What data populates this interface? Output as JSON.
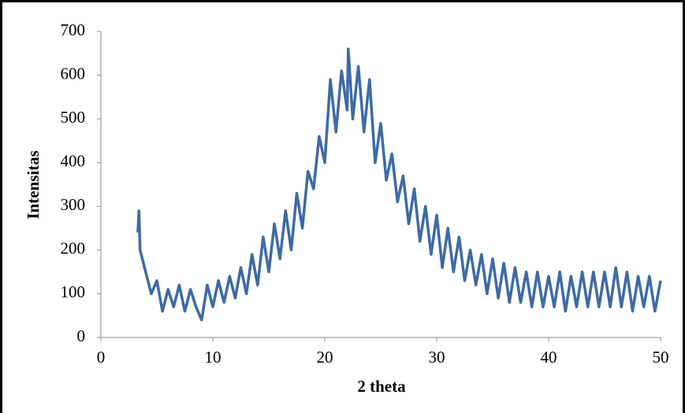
{
  "chart_data": {
    "type": "line",
    "x_label": "2 theta",
    "y_label": "Intensitas",
    "x": [
      3.3,
      3.4,
      3.5,
      4,
      4.5,
      5,
      5.5,
      6,
      6.5,
      7,
      7.5,
      8,
      8.5,
      9,
      9.5,
      10,
      10.5,
      11,
      11.5,
      12,
      12.5,
      13,
      13.5,
      14,
      14.5,
      15,
      15.5,
      16,
      16.5,
      17,
      17.5,
      18,
      18.5,
      19,
      19.5,
      20,
      20.5,
      21,
      21.5,
      22,
      22.1,
      22.5,
      23,
      23.5,
      24,
      24.5,
      25,
      25.5,
      26,
      26.5,
      27,
      27.5,
      28,
      28.5,
      29,
      29.5,
      30,
      30.5,
      31,
      31.5,
      32,
      32.5,
      33,
      33.5,
      34,
      34.5,
      35,
      35.5,
      36,
      36.5,
      37,
      37.5,
      38,
      38.5,
      39,
      39.5,
      40,
      40.5,
      41,
      41.5,
      42,
      42.5,
      43,
      43.5,
      44,
      44.5,
      45,
      45.5,
      46,
      46.5,
      47,
      47.5,
      48,
      48.5,
      49,
      49.5,
      50
    ],
    "series": [
      {
        "color": "#3d6aa5",
        "values": [
          240,
          290,
          200,
          150,
          100,
          130,
          60,
          110,
          70,
          120,
          60,
          110,
          70,
          40,
          120,
          70,
          130,
          80,
          140,
          90,
          160,
          100,
          190,
          120,
          230,
          150,
          260,
          180,
          290,
          200,
          330,
          250,
          380,
          340,
          460,
          400,
          590,
          470,
          610,
          520,
          660,
          500,
          620,
          470,
          590,
          400,
          490,
          360,
          420,
          310,
          370,
          260,
          340,
          220,
          300,
          190,
          280,
          160,
          250,
          150,
          230,
          130,
          200,
          120,
          190,
          100,
          180,
          90,
          170,
          80,
          160,
          80,
          150,
          70,
          150,
          70,
          140,
          70,
          150,
          60,
          140,
          70,
          150,
          70,
          150,
          70,
          150,
          70,
          160,
          70,
          150,
          60,
          140,
          70,
          140,
          60,
          130
        ]
      }
    ],
    "xlim": [
      0,
      50
    ],
    "xticks": [
      0,
      10,
      20,
      30,
      40,
      50
    ],
    "ylim": [
      0,
      700
    ],
    "yticks": [
      0,
      100,
      200,
      300,
      400,
      500,
      600,
      700
    ]
  }
}
